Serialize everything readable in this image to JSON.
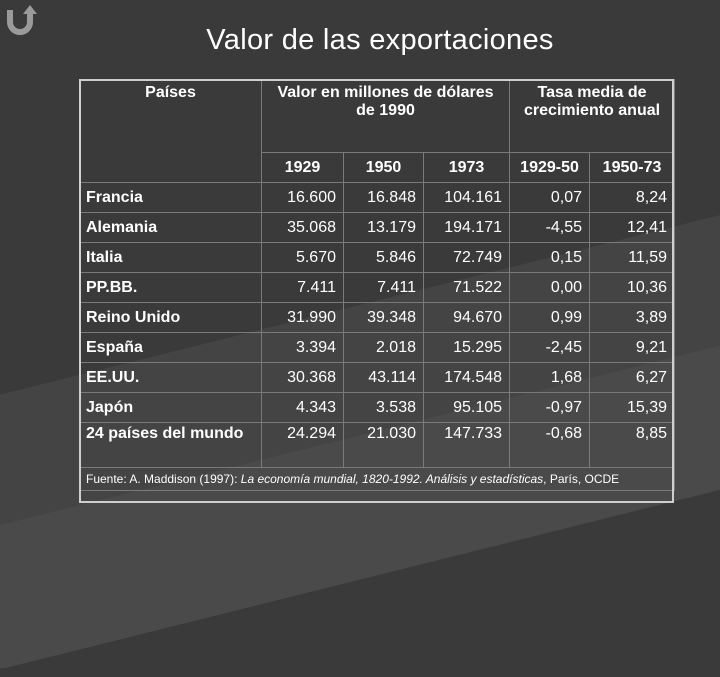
{
  "title": "Valor de las exportaciones",
  "icon": "undo-arrow-icon",
  "table": {
    "header_country": "Países",
    "header_value": "Valor en millones de dólares de 1990",
    "header_growth": "Tasa media de crecimiento anual",
    "years": [
      "1929",
      "1950",
      "1973",
      "1929-50",
      "1950-73"
    ],
    "rows": [
      {
        "country": "Francia",
        "v1929": "16.600",
        "v1950": "16.848",
        "v1973": "104.161",
        "g1": "0,07",
        "g2": "8,24"
      },
      {
        "country": "Alemania",
        "v1929": "35.068",
        "v1950": "13.179",
        "v1973": "194.171",
        "g1": "-4,55",
        "g2": "12,41"
      },
      {
        "country": "Italia",
        "v1929": "5.670",
        "v1950": "5.846",
        "v1973": "72.749",
        "g1": "0,15",
        "g2": "11,59"
      },
      {
        "country": "PP.BB.",
        "v1929": "7.411",
        "v1950": "7.411",
        "v1973": "71.522",
        "g1": "0,00",
        "g2": "10,36"
      },
      {
        "country": "Reino Unido",
        "v1929": "31.990",
        "v1950": "39.348",
        "v1973": "94.670",
        "g1": "0,99",
        "g2": "3,89"
      },
      {
        "country": "España",
        "v1929": "3.394",
        "v1950": "2.018",
        "v1973": "15.295",
        "g1": "-2,45",
        "g2": "9,21"
      },
      {
        "country": "EE.UU.",
        "v1929": "30.368",
        "v1950": "43.114",
        "v1973": "174.548",
        "g1": "1,68",
        "g2": "6,27"
      },
      {
        "country": "Japón",
        "v1929": "4.343",
        "v1950": "3.538",
        "v1973": "95.105",
        "g1": "-0,97",
        "g2": "15,39"
      },
      {
        "country": "24 países del mundo",
        "v1929": "24.294",
        "v1950": "21.030",
        "v1973": "147.733",
        "g1": "-0,68",
        "g2": "8,85"
      }
    ],
    "source_prefix": "Fuente: A. Maddison (1997): ",
    "source_title": "La economía mundial, 1820-1992. Análisis y estadísticas",
    "source_suffix": ", París, OCDE"
  }
}
